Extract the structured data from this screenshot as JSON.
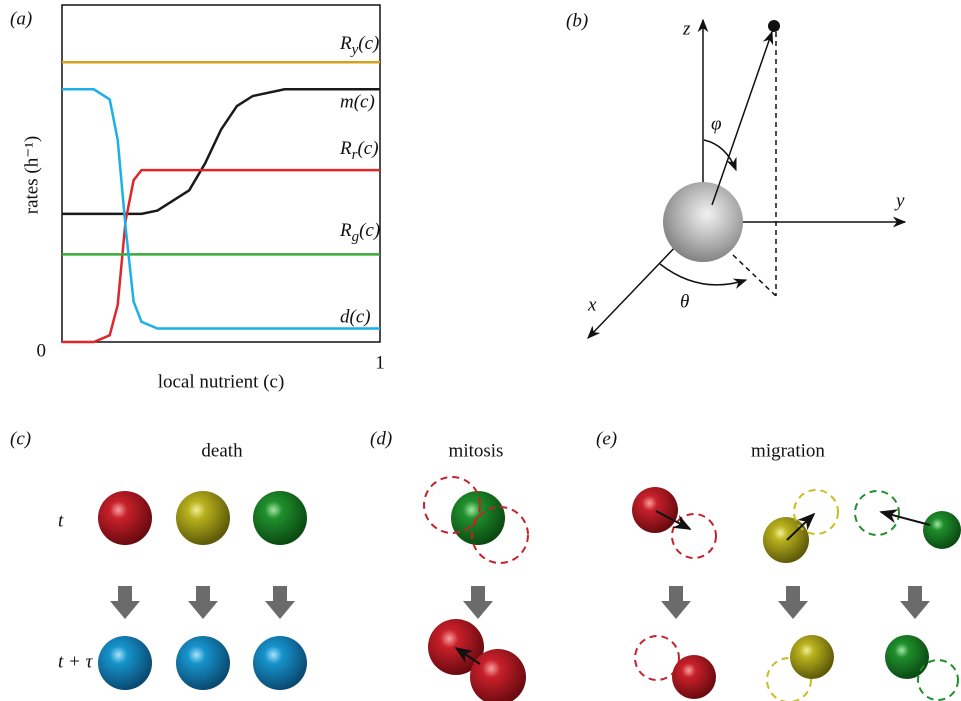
{
  "chart_data": {
    "type": "line",
    "panel_label": "(a)",
    "ylabel": "rates (h⁻¹)",
    "xlabel": "local nutrient (c)",
    "x": [
      0,
      0.1,
      0.15,
      0.175,
      0.2,
      0.225,
      0.25,
      0.3,
      0.4,
      0.45,
      0.5,
      0.55,
      0.6,
      0.7,
      0.8,
      1
    ],
    "xlim": [
      0,
      1
    ],
    "ylim": [
      0,
      1
    ],
    "xticks": [
      1
    ],
    "yticks": [
      0
    ],
    "grid": false,
    "series": [
      {
        "name": "Ry(c)",
        "color": "#d4a21a",
        "values": [
          0.83,
          0.83,
          0.83,
          0.83,
          0.83,
          0.83,
          0.83,
          0.83,
          0.83,
          0.83,
          0.83,
          0.83,
          0.83,
          0.83,
          0.83,
          0.83
        ]
      },
      {
        "name": "m(c)",
        "color": "#1a1a1a",
        "values": [
          0.38,
          0.38,
          0.38,
          0.38,
          0.38,
          0.38,
          0.38,
          0.39,
          0.45,
          0.53,
          0.63,
          0.7,
          0.73,
          0.75,
          0.75,
          0.75
        ]
      },
      {
        "name": "Rr(c)",
        "color": "#e0262b",
        "values": [
          0,
          0,
          0.02,
          0.11,
          0.36,
          0.48,
          0.51,
          0.51,
          0.51,
          0.51,
          0.51,
          0.51,
          0.51,
          0.51,
          0.51,
          0.51
        ]
      },
      {
        "name": "Rg(c)",
        "color": "#3aaa35",
        "values": [
          0.26,
          0.26,
          0.26,
          0.26,
          0.26,
          0.26,
          0.26,
          0.26,
          0.26,
          0.26,
          0.26,
          0.26,
          0.26,
          0.26,
          0.26,
          0.26
        ]
      },
      {
        "name": "d(c)",
        "color": "#1ab0e8",
        "values": [
          0.75,
          0.75,
          0.72,
          0.6,
          0.34,
          0.12,
          0.06,
          0.04,
          0.04,
          0.04,
          0.04,
          0.04,
          0.04,
          0.04,
          0.04,
          0.04
        ]
      }
    ]
  },
  "panels": {
    "b": {
      "label": "(b)",
      "z": "z",
      "y": "y",
      "x": "x",
      "phi": "φ",
      "theta": "θ"
    },
    "c": {
      "label": "(c)",
      "title": "death",
      "t": "t",
      "t_tau": "t + τ"
    },
    "d": {
      "label": "(d)",
      "title": "mitosis"
    },
    "e": {
      "label": "(e)",
      "title": "migration"
    }
  }
}
